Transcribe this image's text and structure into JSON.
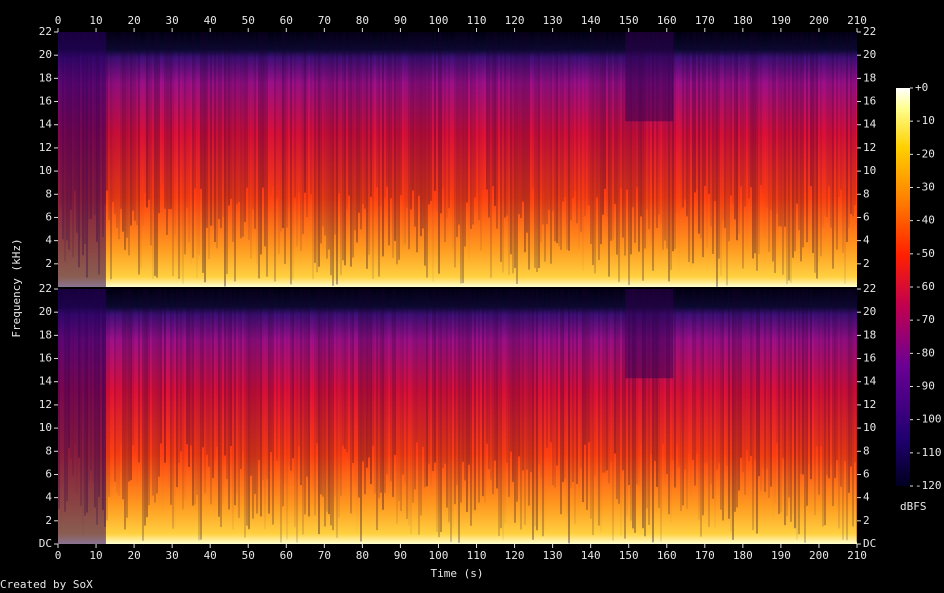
{
  "chart_data": {
    "type": "spectrogram",
    "xlabel": "Time (s)",
    "ylabel": "Frequency (kHz)",
    "xlim": [
      0,
      210
    ],
    "xticks": [
      0,
      10,
      20,
      30,
      40,
      50,
      60,
      70,
      80,
      90,
      100,
      110,
      120,
      130,
      140,
      150,
      160,
      170,
      180,
      190,
      200,
      210
    ],
    "channels": [
      {
        "ylim": [
          0,
          22
        ],
        "yticks": [
          2,
          4,
          6,
          8,
          10,
          12,
          14,
          16,
          18,
          20,
          22
        ]
      },
      {
        "ylim": [
          0,
          22
        ],
        "yticks": [
          {
            "value": 0,
            "label": "DC"
          },
          2,
          4,
          6,
          8,
          10,
          12,
          14,
          16,
          18,
          20,
          22
        ]
      }
    ],
    "colorbar": {
      "label": "dBFS",
      "lim": [
        -120,
        0
      ],
      "ticks": [
        {
          "value": 0,
          "label": "+0"
        },
        -10,
        -20,
        -30,
        -40,
        -50,
        -60,
        -70,
        -80,
        -90,
        -100,
        -110,
        -120
      ]
    },
    "footer": "Created by SoX"
  }
}
